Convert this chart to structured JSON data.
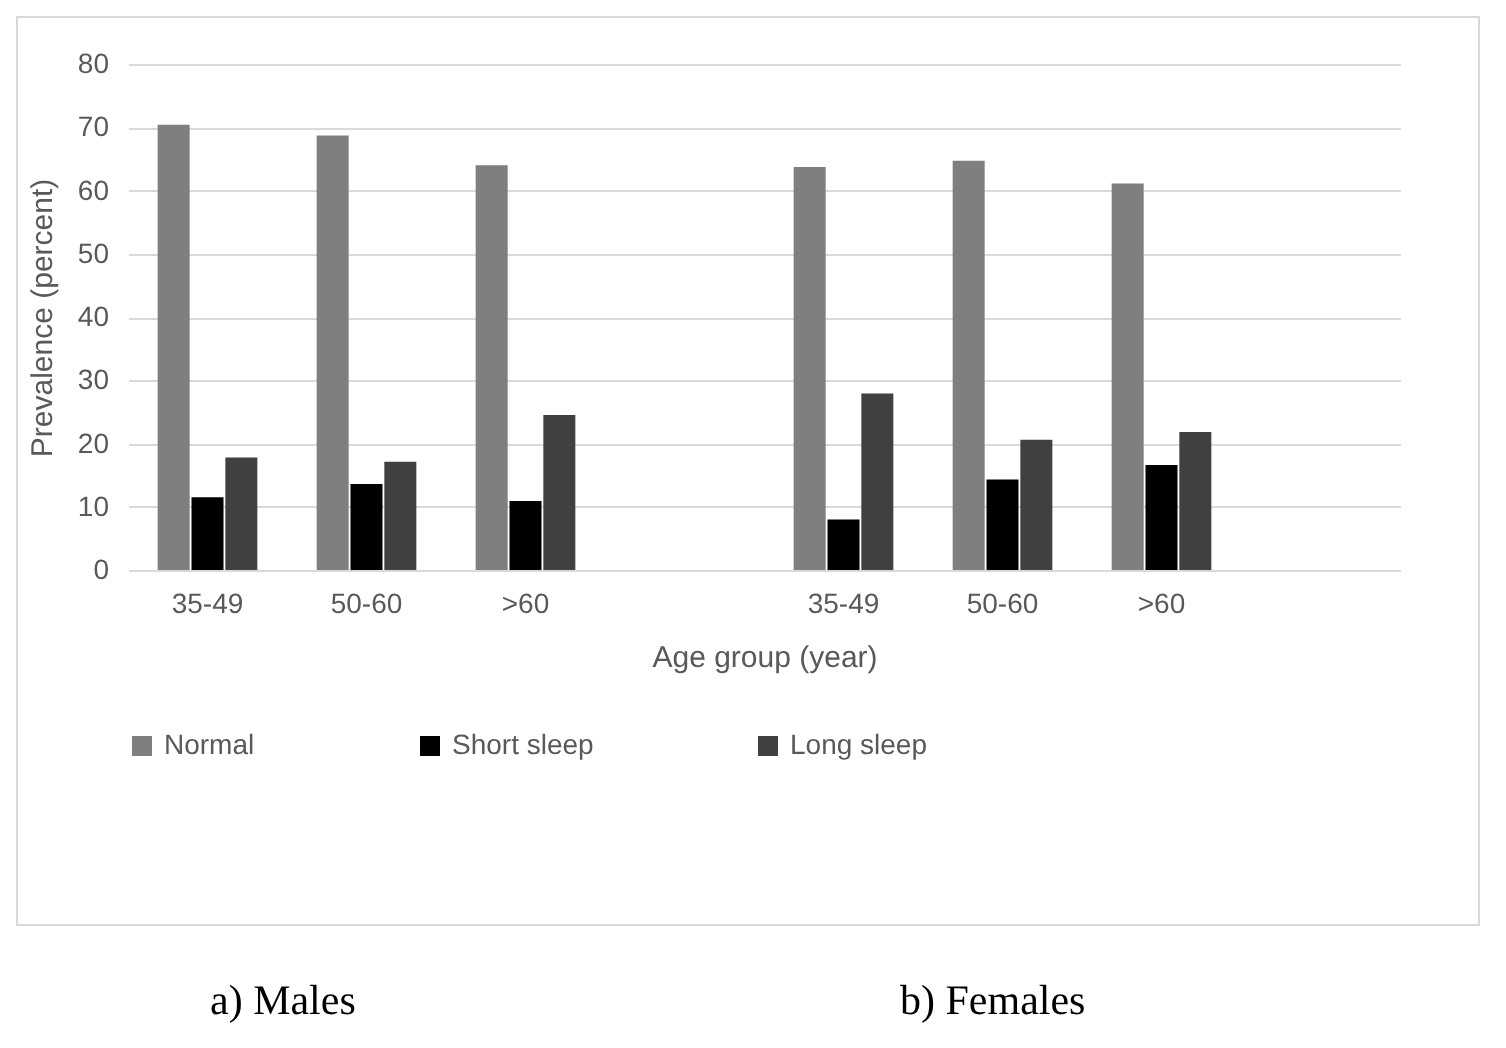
{
  "chart_data": {
    "type": "bar",
    "xlabel": "Age group (year)",
    "ylabel": "Prevalence (percent)",
    "categories": [
      "35-49",
      "50-60",
      ">60",
      null,
      "35-49",
      "50-60",
      ">60",
      null
    ],
    "series": [
      {
        "name": "Normal",
        "color": "#7f7f7f",
        "values": [
          70.4,
          68.7,
          64.0,
          null,
          63.7,
          64.7,
          61.1,
          null
        ]
      },
      {
        "name": "Short sleep",
        "color": "#000000",
        "values": [
          11.5,
          13.6,
          10.9,
          null,
          8.0,
          14.3,
          16.6,
          null
        ]
      },
      {
        "name": "Long sleep",
        "color": "#404040",
        "values": [
          17.8,
          17.1,
          24.5,
          null,
          27.9,
          20.6,
          21.8,
          null
        ]
      }
    ],
    "ylim": [
      0,
      80
    ],
    "yticks": [
      0,
      10,
      20,
      30,
      40,
      50,
      60,
      70,
      80
    ],
    "grid": "y",
    "legend": "bottom",
    "annotations": [
      "a) Males",
      "b) Females"
    ]
  }
}
